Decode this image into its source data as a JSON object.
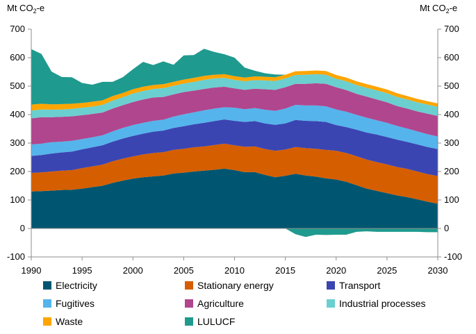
{
  "chart_data": {
    "type": "area",
    "stacked": true,
    "y_unit_left": "Mt CO2-e",
    "y_unit_right": "Mt CO2-e",
    "ylim": [
      -100,
      700
    ],
    "yticks": [
      -100,
      0,
      100,
      200,
      300,
      400,
      500,
      600,
      700
    ],
    "xlim": [
      1990,
      2030
    ],
    "xticks": [
      1990,
      1995,
      2000,
      2005,
      2010,
      2015,
      2020,
      2025,
      2030
    ],
    "grid": false,
    "legend_position": "bottom",
    "x": [
      1990,
      1991,
      1992,
      1993,
      1994,
      1995,
      1996,
      1997,
      1998,
      1999,
      2000,
      2001,
      2002,
      2003,
      2004,
      2005,
      2006,
      2007,
      2008,
      2009,
      2010,
      2011,
      2012,
      2013,
      2014,
      2015,
      2016,
      2017,
      2018,
      2019,
      2020,
      2021,
      2022,
      2023,
      2024,
      2025,
      2026,
      2027,
      2028,
      2029,
      2030
    ],
    "series": [
      {
        "name": "Electricity",
        "color": "#005670",
        "values": [
          130,
          131,
          133,
          135,
          136,
          140,
          145,
          150,
          160,
          168,
          175,
          180,
          183,
          186,
          193,
          196,
          200,
          203,
          206,
          210,
          205,
          198,
          198,
          188,
          180,
          185,
          192,
          186,
          182,
          176,
          172,
          164,
          152,
          140,
          132,
          124,
          116,
          110,
          102,
          94,
          87
        ]
      },
      {
        "name": "Stationary energy",
        "color": "#D55E00",
        "values": [
          65,
          66,
          67,
          68,
          69,
          72,
          73,
          74,
          76,
          77,
          78,
          80,
          82,
          82,
          83,
          84,
          85,
          85,
          87,
          88,
          87,
          89,
          90,
          91,
          93,
          92,
          94,
          96,
          98,
          100,
          101,
          101,
          102,
          102,
          101,
          101,
          100,
          99,
          98,
          97,
          97
        ]
      },
      {
        "name": "Transport",
        "color": "#3A45B2",
        "values": [
          60,
          61,
          63,
          64,
          65,
          66,
          67,
          68,
          69,
          71,
          72,
          73,
          75,
          76,
          77,
          79,
          81,
          83,
          84,
          85,
          86,
          87,
          89,
          90,
          91,
          92,
          95,
          96,
          97,
          98,
          90,
          91,
          93,
          95,
          97,
          96,
          96,
          95,
          95,
          95,
          95
        ]
      },
      {
        "name": "Fugitives",
        "color": "#55B4EB",
        "values": [
          40,
          40,
          40,
          38,
          38,
          36,
          35,
          35,
          36,
          37,
          38,
          38,
          38,
          38,
          40,
          42,
          42,
          44,
          44,
          43,
          46,
          45,
          46,
          48,
          49,
          52,
          53,
          54,
          55,
          55,
          55,
          54,
          52,
          52,
          50,
          50,
          48,
          47,
          46,
          45,
          44
        ]
      },
      {
        "name": "Agriculture",
        "color": "#B0468E",
        "values": [
          92,
          93,
          88,
          87,
          86,
          84,
          82,
          80,
          80,
          80,
          81,
          82,
          82,
          80,
          78,
          78,
          76,
          75,
          74,
          72,
          68,
          68,
          68,
          72,
          74,
          75,
          74,
          76,
          78,
          79,
          78,
          76,
          74,
          74,
          73,
          72,
          70,
          70,
          70,
          72,
          72
        ]
      },
      {
        "name": "Industrial processes",
        "color": "#6BCFCF",
        "values": [
          27,
          27,
          26,
          26,
          26,
          26,
          26,
          27,
          28,
          28,
          30,
          30,
          30,
          31,
          30,
          30,
          31,
          32,
          32,
          31,
          30,
          30,
          30,
          31,
          31,
          31,
          31,
          32,
          32,
          32,
          30,
          31,
          31,
          31,
          32,
          32,
          32,
          32,
          32,
          32,
          32
        ]
      },
      {
        "name": "Waste",
        "color": "#FFA500",
        "values": [
          21,
          20,
          19,
          19,
          18,
          17,
          17,
          16,
          16,
          15,
          15,
          15,
          14,
          14,
          14,
          14,
          14,
          14,
          13,
          13,
          13,
          13,
          13,
          13,
          13,
          13,
          13,
          13,
          13,
          13,
          13,
          13,
          13,
          13,
          13,
          13,
          13,
          12,
          12,
          12,
          12
        ]
      },
      {
        "name": "LULUCF",
        "color": "#1F9A8E",
        "values": [
          195,
          175,
          115,
          95,
          93,
          70,
          60,
          65,
          50,
          55,
          70,
          87,
          70,
          80,
          60,
          85,
          80,
          95,
          80,
          70,
          65,
          35,
          20,
          12,
          10,
          0,
          -20,
          -30,
          -22,
          -23,
          -22,
          -22,
          -12,
          -10,
          -12,
          -12,
          -12,
          -12,
          -12,
          -13,
          -13
        ]
      }
    ]
  }
}
